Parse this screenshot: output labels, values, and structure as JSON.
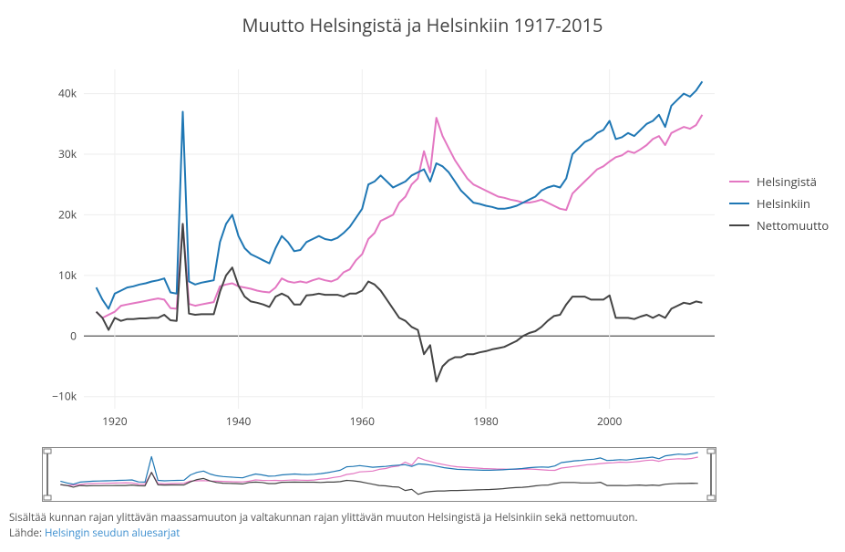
{
  "title": "Muutto Helsingistä ja Helsinkiin 1917-2015",
  "title_fontsize": 20,
  "background_color": "#ffffff",
  "plot_bg": "#ffffff",
  "grid_color": "#eeeeee",
  "axis_color": "#444444",
  "zero_line_color": "#555555",
  "tick_font_color": "#444444",
  "tick_fontsize": 12,
  "xlim": [
    1915,
    2017
  ],
  "xticks": [
    1920,
    1940,
    1960,
    1980,
    2000
  ],
  "ylim": [
    -12000,
    44000
  ],
  "yticks": [
    -10000,
    0,
    10000,
    20000,
    30000,
    40000
  ],
  "ytick_labels": [
    "−10k",
    "0",
    "10k",
    "20k",
    "30k",
    "40k"
  ],
  "legend": {
    "fontsize": 13,
    "items": [
      {
        "label": "Helsingistä",
        "color": "#e377c2"
      },
      {
        "label": "Helsinkiin",
        "color": "#1f77b4"
      },
      {
        "label": "Nettomuutto",
        "color": "#444444"
      }
    ]
  },
  "series": {
    "years": [
      1917,
      1918,
      1919,
      1920,
      1921,
      1922,
      1923,
      1924,
      1925,
      1926,
      1927,
      1928,
      1929,
      1930,
      1931,
      1932,
      1933,
      1934,
      1935,
      1936,
      1937,
      1938,
      1939,
      1940,
      1941,
      1942,
      1943,
      1944,
      1945,
      1946,
      1947,
      1948,
      1949,
      1950,
      1951,
      1952,
      1953,
      1954,
      1955,
      1956,
      1957,
      1958,
      1959,
      1960,
      1961,
      1962,
      1963,
      1964,
      1965,
      1966,
      1967,
      1968,
      1969,
      1970,
      1971,
      1972,
      1973,
      1974,
      1975,
      1976,
      1977,
      1978,
      1979,
      1980,
      1981,
      1982,
      1983,
      1984,
      1985,
      1986,
      1987,
      1988,
      1989,
      1990,
      1991,
      1992,
      1993,
      1994,
      1995,
      1996,
      1997,
      1998,
      1999,
      2000,
      2001,
      2002,
      2003,
      2004,
      2005,
      2006,
      2007,
      2008,
      2009,
      2010,
      2011,
      2012,
      2013,
      2014,
      2015
    ],
    "helsingista": {
      "color": "#e377c2",
      "line_width": 2,
      "values": [
        4000,
        3000,
        3500,
        4000,
        5000,
        5200,
        5400,
        5600,
        5800,
        6000,
        6200,
        6000,
        4600,
        4500,
        18500,
        5300,
        5000,
        5200,
        5400,
        5600,
        8200,
        8500,
        8700,
        8200,
        8000,
        7800,
        7500,
        7300,
        7200,
        8000,
        9500,
        9000,
        8800,
        9000,
        8800,
        9200,
        9500,
        9200,
        9000,
        9400,
        10500,
        11000,
        12500,
        13500,
        16000,
        17000,
        19000,
        19500,
        20000,
        22000,
        23000,
        25000,
        26000,
        30500,
        27000,
        36000,
        33000,
        31000,
        29000,
        27500,
        26000,
        25000,
        24500,
        24000,
        23500,
        23000,
        22800,
        22500,
        22300,
        22000,
        22000,
        22200,
        22500,
        22000,
        21500,
        21000,
        20800,
        23500,
        24500,
        25500,
        26500,
        27500,
        28000,
        28800,
        29500,
        29800,
        30500,
        30200,
        30800,
        31500,
        32500,
        33000,
        31500,
        33500,
        34000,
        34500,
        34200,
        34800,
        36500
      ]
    },
    "helsinkiin": {
      "color": "#1f77b4",
      "line_width": 2,
      "values": [
        8000,
        6000,
        4500,
        7000,
        7500,
        8000,
        8200,
        8500,
        8700,
        9000,
        9200,
        9500,
        7200,
        7000,
        37000,
        9000,
        8500,
        8800,
        9000,
        9200,
        15500,
        18500,
        20000,
        16500,
        14500,
        13500,
        13000,
        12500,
        12000,
        14500,
        16500,
        15500,
        14000,
        14200,
        15500,
        16000,
        16500,
        16000,
        15800,
        16200,
        17000,
        18000,
        19500,
        21000,
        25000,
        25500,
        26500,
        25500,
        24500,
        25000,
        25500,
        26500,
        27000,
        27500,
        25500,
        28500,
        28000,
        27000,
        25500,
        24000,
        23000,
        22000,
        21800,
        21500,
        21300,
        21000,
        21000,
        21200,
        21500,
        22000,
        22500,
        23000,
        24000,
        24500,
        24800,
        24500,
        26000,
        30000,
        31000,
        32000,
        32500,
        33500,
        34000,
        35500,
        32500,
        32800,
        33500,
        33000,
        34000,
        35000,
        35500,
        36500,
        34500,
        38000,
        39000,
        40000,
        39500,
        40500,
        42000
      ]
    },
    "nettomuutto": {
      "color": "#444444",
      "line_width": 2,
      "values": [
        4000,
        3000,
        1000,
        3000,
        2500,
        2800,
        2800,
        2900,
        2900,
        3000,
        3000,
        3500,
        2600,
        2500,
        18500,
        3700,
        3500,
        3600,
        3600,
        3600,
        7300,
        10000,
        11300,
        8300,
        6500,
        5700,
        5500,
        5200,
        4800,
        6500,
        7000,
        6500,
        5200,
        5200,
        6700,
        6800,
        7000,
        6800,
        6800,
        6800,
        6500,
        7000,
        7000,
        7500,
        9000,
        8500,
        7500,
        6000,
        4500,
        3000,
        2500,
        1500,
        1000,
        -3000,
        -1500,
        -7500,
        -5000,
        -4000,
        -3500,
        -3500,
        -3000,
        -3000,
        -2700,
        -2500,
        -2200,
        -2000,
        -1800,
        -1300,
        -800,
        0,
        500,
        800,
        1500,
        2500,
        3300,
        3500,
        5200,
        6500,
        6500,
        6500,
        6000,
        6000,
        6000,
        6700,
        3000,
        3000,
        3000,
        2800,
        3200,
        3500,
        3000,
        3500,
        3000,
        4500,
        5000,
        5500,
        5300,
        5700,
        5500
      ]
    }
  },
  "rangeslider": {
    "height": 60,
    "border_color": "#888888",
    "handle_color": "#777777"
  },
  "caption": {
    "text_before_link": "Sisältää kunnan rajan ylittävän maassamuuton ja valtakunnan rajan ylittävän muuton Helsingistä ja Helsinkiin sekä nettomuuton.\nLähde: ",
    "link_text": "Helsingin seudun aluesarjat",
    "link_color": "#3b8ecf",
    "fontsize": 11.5
  }
}
